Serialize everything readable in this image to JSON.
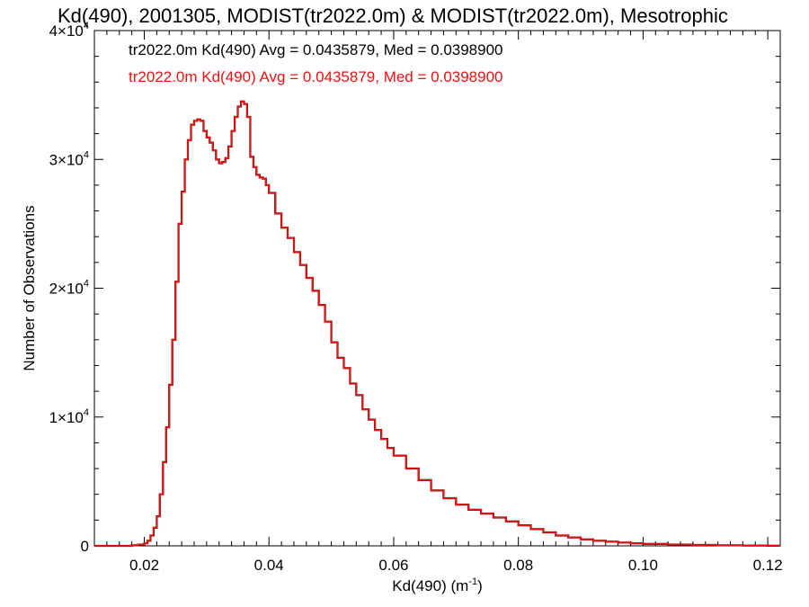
{
  "chart_data": {
    "type": "histogram-step",
    "title": "Kd(490), 2001305, MODIST(tr2022.0m) & MODIST(tr2022.0m), Mesotrophic",
    "xlabel": "Kd(490) (m",
    "xlabel_sup": "-1",
    "xlabel_suffix": ")",
    "ylabel": "Number of Observations",
    "xlim": [
      0.012,
      0.122
    ],
    "ylim": [
      0,
      40000
    ],
    "x_ticks": [
      {
        "value": 0.02,
        "label": "0.02"
      },
      {
        "value": 0.04,
        "label": "0.04"
      },
      {
        "value": 0.06,
        "label": "0.06"
      },
      {
        "value": 0.08,
        "label": "0.08"
      },
      {
        "value": 0.1,
        "label": "0.10"
      },
      {
        "value": 0.12,
        "label": "0.12"
      }
    ],
    "y_ticks": [
      {
        "value": 0,
        "mant": "0",
        "exp": ""
      },
      {
        "value": 10000,
        "mant": "1×10",
        "exp": "4"
      },
      {
        "value": 20000,
        "mant": "2×10",
        "exp": "4"
      },
      {
        "value": 30000,
        "mant": "3×10",
        "exp": "4"
      },
      {
        "value": 40000,
        "mant": "4×10",
        "exp": "4"
      }
    ],
    "annotations": [
      {
        "text": "tr2022.0m Kd(490) Avg = 0.0435879, Med = 0.0398900",
        "color": "#000000"
      },
      {
        "text": "tr2022.0m Kd(490) Avg = 0.0435879, Med = 0.0398900",
        "color": "#ee1111"
      }
    ],
    "series": [
      {
        "color": "#000000",
        "dash": false
      },
      {
        "color": "#ee1111",
        "dash": false
      }
    ],
    "x": [
      0.012,
      0.015,
      0.018,
      0.019,
      0.02,
      0.0205,
      0.021,
      0.0215,
      0.022,
      0.0225,
      0.023,
      0.0235,
      0.024,
      0.0245,
      0.025,
      0.0255,
      0.026,
      0.0265,
      0.027,
      0.0275,
      0.028,
      0.0285,
      0.029,
      0.0295,
      0.03,
      0.0305,
      0.031,
      0.0315,
      0.032,
      0.0325,
      0.033,
      0.0335,
      0.034,
      0.0345,
      0.035,
      0.0355,
      0.036,
      0.0365,
      0.037,
      0.0375,
      0.038,
      0.0385,
      0.039,
      0.0395,
      0.04,
      0.041,
      0.042,
      0.043,
      0.044,
      0.045,
      0.046,
      0.047,
      0.048,
      0.049,
      0.05,
      0.051,
      0.052,
      0.053,
      0.054,
      0.055,
      0.056,
      0.057,
      0.058,
      0.059,
      0.06,
      0.062,
      0.064,
      0.066,
      0.068,
      0.07,
      0.072,
      0.074,
      0.076,
      0.078,
      0.08,
      0.082,
      0.084,
      0.086,
      0.088,
      0.09,
      0.092,
      0.094,
      0.096,
      0.098,
      0.1,
      0.104,
      0.108,
      0.112,
      0.116,
      0.12
    ],
    "values": [
      0,
      0,
      50,
      100,
      200,
      400,
      800,
      1400,
      2300,
      4000,
      6500,
      9200,
      12500,
      16000,
      20500,
      25000,
      27500,
      30000,
      31500,
      32700,
      33000,
      33100,
      33000,
      32200,
      31700,
      31300,
      30700,
      30000,
      29700,
      29800,
      30100,
      31000,
      32200,
      33300,
      34100,
      34500,
      34300,
      33300,
      30200,
      29400,
      28800,
      28600,
      28500,
      28000,
      27400,
      25800,
      24700,
      23900,
      22800,
      21800,
      20800,
      19800,
      18700,
      17400,
      15800,
      14600,
      13800,
      12600,
      11700,
      10600,
      9800,
      9000,
      8300,
      7600,
      7000,
      6000,
      5100,
      4300,
      3700,
      3200,
      2800,
      2500,
      2200,
      1900,
      1600,
      1300,
      1050,
      800,
      650,
      500,
      400,
      330,
      260,
      200,
      150,
      100,
      70,
      40,
      20,
      10
    ]
  }
}
